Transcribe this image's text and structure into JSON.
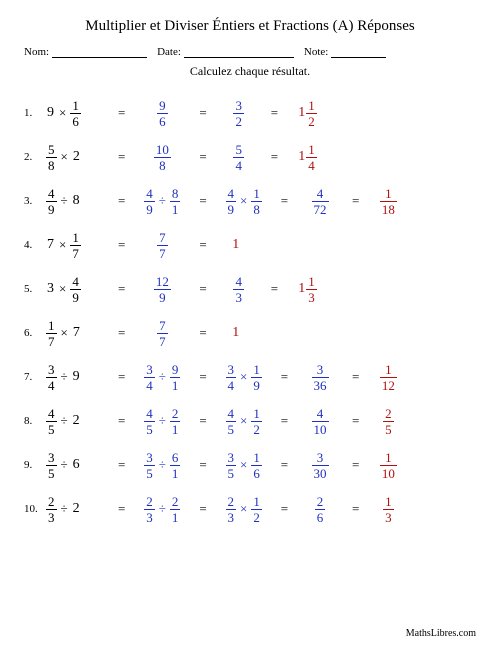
{
  "title": "Multiplier et Diviser Éntiers et Fractions (A) Réponses",
  "labels": {
    "nom": "Nom:",
    "date": "Date:",
    "note": "Note:"
  },
  "instruction": "Calculez chaque résultat.",
  "footer": "MathsLibres.com",
  "colors": {
    "step": "#2030c0",
    "answer": "#b01010"
  },
  "problems": [
    {
      "n": "1.",
      "q": [
        {
          "w": "9"
        },
        {
          "op": "×"
        },
        {
          "f": [
            "1",
            "6"
          ]
        }
      ],
      "steps": [
        [
          {
            "f": [
              "9",
              "6"
            ]
          }
        ],
        [
          {
            "f": [
              "3",
              "2"
            ]
          }
        ]
      ],
      "ans": [
        {
          "m": [
            "1",
            "1",
            "2"
          ]
        }
      ]
    },
    {
      "n": "2.",
      "q": [
        {
          "f": [
            "5",
            "8"
          ]
        },
        {
          "op": "×"
        },
        {
          "w": "2"
        }
      ],
      "steps": [
        [
          {
            "f": [
              "10",
              "8"
            ]
          }
        ],
        [
          {
            "f": [
              "5",
              "4"
            ]
          }
        ]
      ],
      "ans": [
        {
          "m": [
            "1",
            "1",
            "4"
          ]
        }
      ]
    },
    {
      "n": "3.",
      "q": [
        {
          "f": [
            "4",
            "9"
          ]
        },
        {
          "op": "÷"
        },
        {
          "w": "8"
        }
      ],
      "steps": [
        [
          {
            "f": [
              "4",
              "9"
            ]
          },
          {
            "op": "÷"
          },
          {
            "f": [
              "8",
              "1"
            ]
          }
        ],
        [
          {
            "f": [
              "4",
              "9"
            ]
          },
          {
            "op": "×"
          },
          {
            "f": [
              "1",
              "8"
            ]
          }
        ],
        [
          {
            "f": [
              "4",
              "72"
            ]
          }
        ]
      ],
      "ans": [
        {
          "f": [
            "1",
            "18"
          ]
        }
      ]
    },
    {
      "n": "4.",
      "q": [
        {
          "w": "7"
        },
        {
          "op": "×"
        },
        {
          "f": [
            "1",
            "7"
          ]
        }
      ],
      "steps": [
        [
          {
            "f": [
              "7",
              "7"
            ]
          }
        ]
      ],
      "ans": [
        {
          "w": "1"
        }
      ]
    },
    {
      "n": "5.",
      "q": [
        {
          "w": "3"
        },
        {
          "op": "×"
        },
        {
          "f": [
            "4",
            "9"
          ]
        }
      ],
      "steps": [
        [
          {
            "f": [
              "12",
              "9"
            ]
          }
        ],
        [
          {
            "f": [
              "4",
              "3"
            ]
          }
        ]
      ],
      "ans": [
        {
          "m": [
            "1",
            "1",
            "3"
          ]
        }
      ]
    },
    {
      "n": "6.",
      "q": [
        {
          "f": [
            "1",
            "7"
          ]
        },
        {
          "op": "×"
        },
        {
          "w": "7"
        }
      ],
      "steps": [
        [
          {
            "f": [
              "7",
              "7"
            ]
          }
        ]
      ],
      "ans": [
        {
          "w": "1"
        }
      ]
    },
    {
      "n": "7.",
      "q": [
        {
          "f": [
            "3",
            "4"
          ]
        },
        {
          "op": "÷"
        },
        {
          "w": "9"
        }
      ],
      "steps": [
        [
          {
            "f": [
              "3",
              "4"
            ]
          },
          {
            "op": "÷"
          },
          {
            "f": [
              "9",
              "1"
            ]
          }
        ],
        [
          {
            "f": [
              "3",
              "4"
            ]
          },
          {
            "op": "×"
          },
          {
            "f": [
              "1",
              "9"
            ]
          }
        ],
        [
          {
            "f": [
              "3",
              "36"
            ]
          }
        ]
      ],
      "ans": [
        {
          "f": [
            "1",
            "12"
          ]
        }
      ]
    },
    {
      "n": "8.",
      "q": [
        {
          "f": [
            "4",
            "5"
          ]
        },
        {
          "op": "÷"
        },
        {
          "w": "2"
        }
      ],
      "steps": [
        [
          {
            "f": [
              "4",
              "5"
            ]
          },
          {
            "op": "÷"
          },
          {
            "f": [
              "2",
              "1"
            ]
          }
        ],
        [
          {
            "f": [
              "4",
              "5"
            ]
          },
          {
            "op": "×"
          },
          {
            "f": [
              "1",
              "2"
            ]
          }
        ],
        [
          {
            "f": [
              "4",
              "10"
            ]
          }
        ]
      ],
      "ans": [
        {
          "f": [
            "2",
            "5"
          ]
        }
      ]
    },
    {
      "n": "9.",
      "q": [
        {
          "f": [
            "3",
            "5"
          ]
        },
        {
          "op": "÷"
        },
        {
          "w": "6"
        }
      ],
      "steps": [
        [
          {
            "f": [
              "3",
              "5"
            ]
          },
          {
            "op": "÷"
          },
          {
            "f": [
              "6",
              "1"
            ]
          }
        ],
        [
          {
            "f": [
              "3",
              "5"
            ]
          },
          {
            "op": "×"
          },
          {
            "f": [
              "1",
              "6"
            ]
          }
        ],
        [
          {
            "f": [
              "3",
              "30"
            ]
          }
        ]
      ],
      "ans": [
        {
          "f": [
            "1",
            "10"
          ]
        }
      ]
    },
    {
      "n": "10.",
      "q": [
        {
          "f": [
            "2",
            "3"
          ]
        },
        {
          "op": "÷"
        },
        {
          "w": "2"
        }
      ],
      "steps": [
        [
          {
            "f": [
              "2",
              "3"
            ]
          },
          {
            "op": "÷"
          },
          {
            "f": [
              "2",
              "1"
            ]
          }
        ],
        [
          {
            "f": [
              "2",
              "3"
            ]
          },
          {
            "op": "×"
          },
          {
            "f": [
              "1",
              "2"
            ]
          }
        ],
        [
          {
            "f": [
              "2",
              "6"
            ]
          }
        ]
      ],
      "ans": [
        {
          "f": [
            "1",
            "3"
          ]
        }
      ]
    }
  ]
}
